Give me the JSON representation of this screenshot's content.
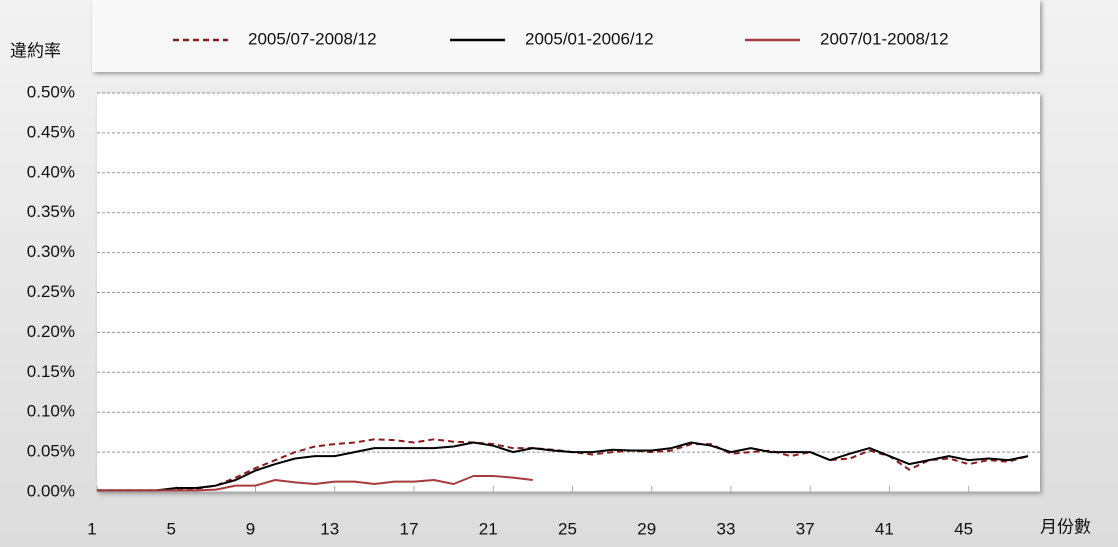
{
  "chart_data": {
    "type": "line",
    "ylabel": "違約率",
    "xlabel": "月份數",
    "xlim": [
      1,
      48.6
    ],
    "xticks": [
      1,
      5,
      9,
      13,
      17,
      21,
      25,
      29,
      33,
      37,
      41,
      45
    ],
    "ylim": [
      0,
      0.5
    ],
    "yticks": [
      {
        "value": 0,
        "label": "0.00%"
      },
      {
        "value": 0.05,
        "label": "0.05%"
      },
      {
        "value": 0.1,
        "label": "0.10%"
      },
      {
        "value": 0.15,
        "label": "0.15%"
      },
      {
        "value": 0.2,
        "label": "0.20%"
      },
      {
        "value": 0.25,
        "label": "0.25%"
      },
      {
        "value": 0.3,
        "label": "0.30%"
      },
      {
        "value": 0.35,
        "label": "0.35%"
      },
      {
        "value": 0.4,
        "label": "0.40%"
      },
      {
        "value": 0.45,
        "label": "0.45%"
      },
      {
        "value": 0.5,
        "label": "0.50%"
      }
    ],
    "grid": true,
    "legend": "top",
    "series": [
      {
        "name": "2005/07-2008/12",
        "color": "#8b1a1a",
        "dashed": true,
        "x": [
          1,
          2,
          3,
          4,
          5,
          6,
          7,
          8,
          9,
          10,
          11,
          12,
          13,
          14,
          15,
          16,
          17,
          18,
          19,
          20,
          21,
          22,
          23,
          24,
          25,
          26,
          27,
          28,
          29,
          30,
          31,
          32,
          33,
          34,
          35,
          36,
          37,
          38,
          39,
          40,
          41,
          42,
          43,
          44,
          45,
          46,
          47,
          48
        ],
        "values": [
          0.002,
          0.002,
          0.002,
          0.002,
          0.003,
          0.004,
          0.008,
          0.018,
          0.03,
          0.04,
          0.05,
          0.057,
          0.06,
          0.062,
          0.066,
          0.065,
          0.062,
          0.066,
          0.063,
          0.062,
          0.06,
          0.055,
          0.055,
          0.053,
          0.05,
          0.047,
          0.05,
          0.052,
          0.05,
          0.052,
          0.06,
          0.06,
          0.048,
          0.05,
          0.052,
          0.045,
          0.05,
          0.04,
          0.042,
          0.052,
          0.045,
          0.028,
          0.04,
          0.042,
          0.035,
          0.04,
          0.038,
          0.045
        ]
      },
      {
        "name": "2005/01-2006/12",
        "color": "#000000",
        "dashed": false,
        "x": [
          1,
          2,
          3,
          4,
          5,
          6,
          7,
          8,
          9,
          10,
          11,
          12,
          13,
          14,
          15,
          16,
          17,
          18,
          19,
          20,
          21,
          22,
          23,
          24,
          25,
          26,
          27,
          28,
          29,
          30,
          31,
          32,
          33,
          34,
          35,
          36,
          37,
          38,
          39,
          40,
          41,
          42,
          43,
          44,
          45,
          46,
          47,
          48
        ],
        "values": [
          0.002,
          0.002,
          0.002,
          0.002,
          0.005,
          0.005,
          0.008,
          0.015,
          0.027,
          0.035,
          0.042,
          0.045,
          0.045,
          0.05,
          0.055,
          0.055,
          0.055,
          0.055,
          0.057,
          0.062,
          0.058,
          0.05,
          0.055,
          0.052,
          0.05,
          0.05,
          0.053,
          0.052,
          0.052,
          0.055,
          0.062,
          0.058,
          0.05,
          0.055,
          0.05,
          0.05,
          0.05,
          0.04,
          0.048,
          0.055,
          0.045,
          0.035,
          0.04,
          0.045,
          0.04,
          0.042,
          0.04,
          0.045
        ]
      },
      {
        "name": "2007/01-2008/12",
        "color": "#a83c3c",
        "dashed": false,
        "x": [
          1,
          2,
          3,
          4,
          5,
          6,
          7,
          8,
          9,
          10,
          11,
          12,
          13,
          14,
          15,
          16,
          17,
          18,
          19,
          20,
          21,
          22,
          23
        ],
        "values": [
          0.002,
          0.002,
          0.002,
          0.002,
          0.002,
          0.002,
          0.003,
          0.008,
          0.008,
          0.015,
          0.012,
          0.01,
          0.013,
          0.013,
          0.01,
          0.013,
          0.013,
          0.015,
          0.01,
          0.02,
          0.02,
          0.018,
          0.015
        ]
      }
    ]
  }
}
